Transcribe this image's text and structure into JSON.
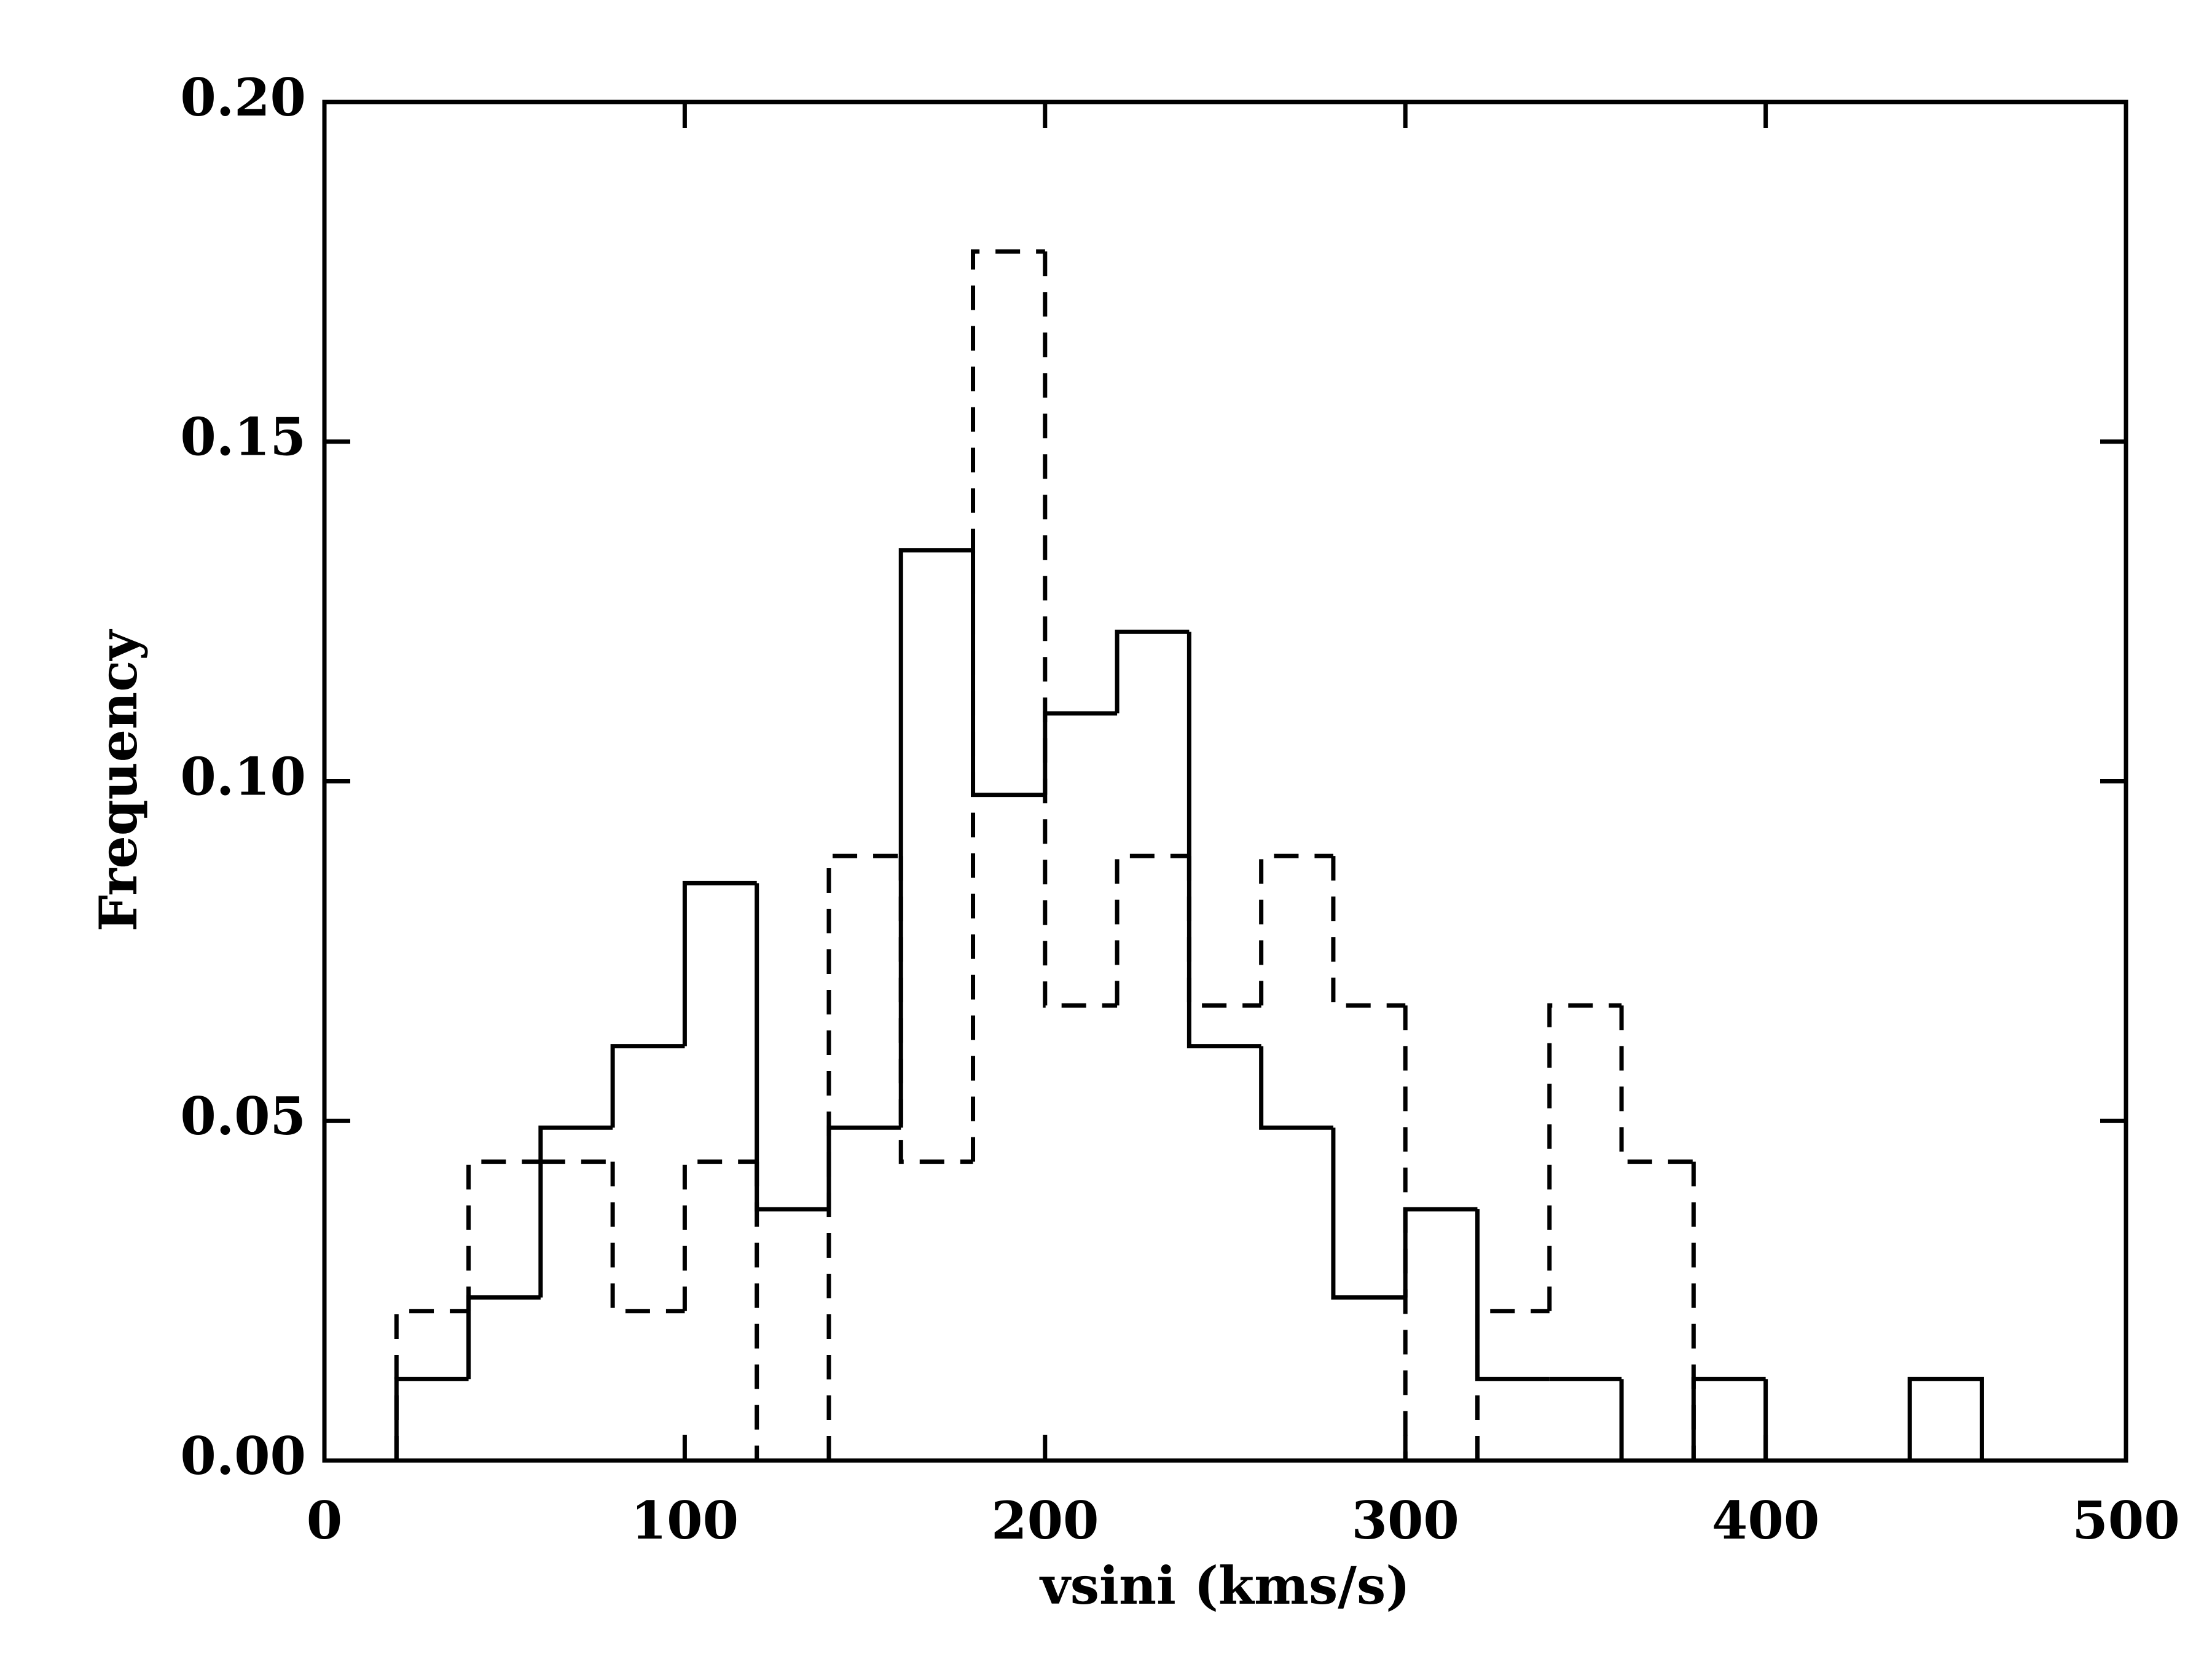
{
  "chart_data": {
    "type": "histogram",
    "x_label": "vsini (kms/s)",
    "y_label": "Frequency",
    "bins": [
      20,
      40,
      60,
      80,
      100,
      120,
      140,
      160,
      180,
      200,
      220,
      240,
      260,
      280,
      300,
      320,
      340,
      360,
      380,
      400,
      420,
      440,
      460
    ],
    "series": [
      {
        "color": "#000000",
        "dash": false,
        "values": [
          0.012,
          0.024,
          0.049,
          0.061,
          0.085,
          0.037,
          0.049,
          0.134,
          0.098,
          0.11,
          0.122,
          0.061,
          0.049,
          0.024,
          0.037,
          0.012,
          0.012,
          0,
          0.012,
          0,
          0,
          0.012
        ]
      },
      {
        "color": "#000000",
        "dash": true,
        "values": [
          0.022,
          0.044,
          0.044,
          0.022,
          0.044,
          0,
          0.089,
          0.044,
          0.178,
          0.067,
          0.089,
          0.067,
          0.089,
          0.067,
          0,
          0.022,
          0.067,
          0.044,
          0,
          0,
          0,
          0
        ]
      }
    ],
    "xlim": [
      0,
      500
    ],
    "xticks": [
      0,
      100,
      200,
      300,
      400,
      500
    ],
    "ylim": [
      0,
      0.2
    ],
    "yticks": [
      {
        "value": 0,
        "label": "0.00"
      },
      {
        "value": 0.05,
        "label": "0.05"
      },
      {
        "value": 0.1,
        "label": "0.10"
      },
      {
        "value": 0.15,
        "label": "0.15"
      },
      {
        "value": 0.2,
        "label": "0.20"
      }
    ]
  }
}
